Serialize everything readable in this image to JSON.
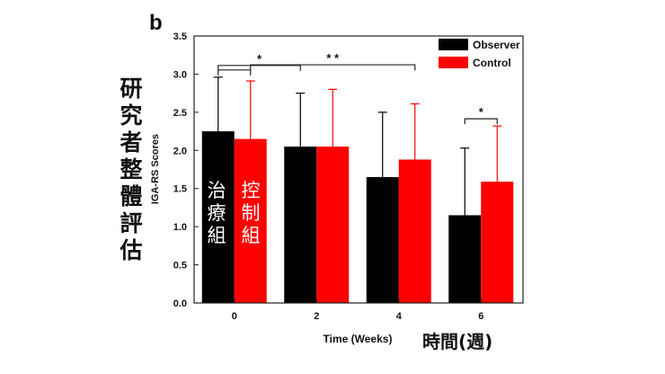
{
  "panel_label": "b",
  "annotations": {
    "vertical_label": "研究者整體評估",
    "x_label_cjk": "時間(週)",
    "bar_label_observer": "治療組",
    "bar_label_control": "控制組"
  },
  "colors": {
    "observer": "#000000",
    "control": "#ff0000"
  },
  "chart_data": {
    "type": "bar",
    "categories": [
      "0",
      "2",
      "4",
      "6"
    ],
    "series": [
      {
        "name": "Observer",
        "values": [
          2.25,
          2.05,
          1.65,
          1.15
        ],
        "error": [
          0.71,
          0.7,
          0.85,
          0.88
        ]
      },
      {
        "name": "Control",
        "values": [
          2.15,
          2.05,
          1.88,
          1.59
        ],
        "error": [
          0.76,
          0.75,
          0.73,
          0.73
        ]
      }
    ],
    "xlabel": "Time (Weeks)",
    "ylabel": "IGA-RS Scores",
    "ylim": [
      0,
      3.5
    ],
    "yticks": [
      "0.0",
      "0.5",
      "1.0",
      "1.5",
      "2.0",
      "2.5",
      "3.0",
      "3.5"
    ],
    "legend_position": "top-right",
    "significance": [
      {
        "from": 0,
        "from_series": 0,
        "to": 0,
        "to_series": 1,
        "label": ""
      },
      {
        "from": 0,
        "from_series": 0,
        "to": 1,
        "to_series": 0,
        "label": "*"
      },
      {
        "from": 0,
        "from_series": 1,
        "to": 2,
        "to_series": 1,
        "label": "* *"
      },
      {
        "from": 3,
        "from_series": 0,
        "to": 3,
        "to_series": 1,
        "label": "*"
      }
    ]
  }
}
